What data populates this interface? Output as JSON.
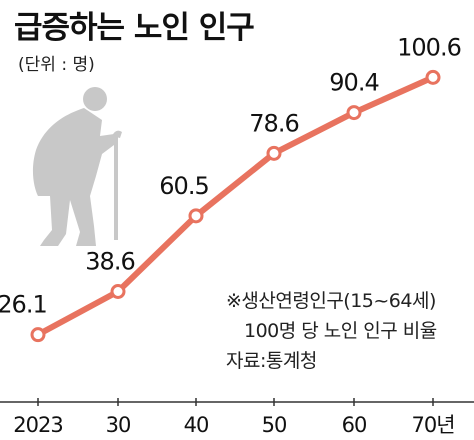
{
  "title": "급증하는 노인 인구",
  "unit_label": "(단위 : 명)",
  "footnote": {
    "line1": "※생산연령인구(15~64세)",
    "line2": "100명 당 노인 인구 비율",
    "source": "자료:통계청"
  },
  "colors": {
    "line": "#e8735f",
    "marker_fill": "#ffffff",
    "axis": "#333333",
    "silhouette": "#c8c8c8"
  },
  "icons": [
    "elderly-person-with-cane-icon"
  ],
  "chart_data": {
    "type": "line",
    "title": "급증하는 노인 인구",
    "xlabel": "",
    "ylabel": "",
    "categories": [
      "2023",
      "30",
      "40",
      "50",
      "60",
      "70년"
    ],
    "series": [
      {
        "values": [
          26.1,
          38.6,
          60.5,
          78.6,
          90.4,
          100.6
        ]
      }
    ],
    "data_labels": [
      "26.1",
      "38.6",
      "60.5",
      "78.6",
      "90.4",
      "100.6"
    ],
    "ylim": [
      15,
      112
    ],
    "grid": false,
    "legend": "none"
  }
}
